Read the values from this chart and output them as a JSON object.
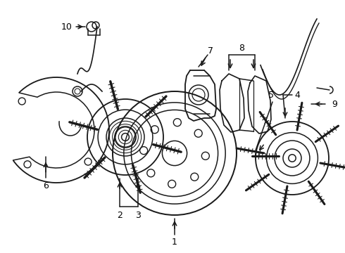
{
  "background_color": "#ffffff",
  "line_color": "#1a1a1a",
  "line_width": 1.1,
  "figsize": [
    4.9,
    3.6
  ],
  "dpi": 100,
  "xlim": [
    0,
    490
  ],
  "ylim": [
    0,
    360
  ]
}
